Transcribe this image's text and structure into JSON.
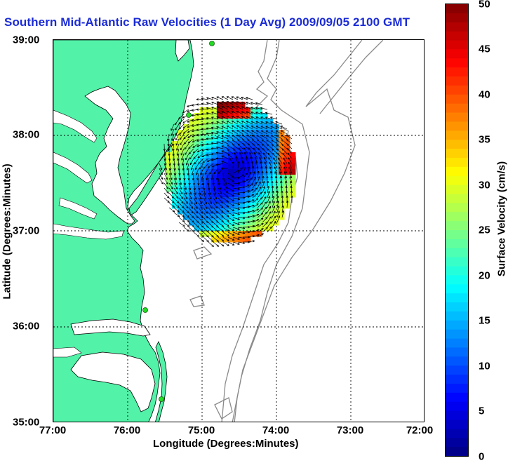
{
  "title": "Southern Mid-Atlantic Raw Velocities (1 Day Avg) 2009/09/05 2100 GMT",
  "map": {
    "type": "map",
    "xlabel": "Longitude (Degrees:Minutes)",
    "ylabel": "Latitude (Degrees:Minutes)",
    "xticks": [
      "77:00",
      "76:00",
      "75:00",
      "74:00",
      "73:00",
      "72:00"
    ],
    "yticks": [
      "39:00",
      "38:00",
      "37:00",
      "36:00",
      "35:00"
    ],
    "grid": true
  },
  "colorbar": {
    "label": "Surface Velocity (cm/s)",
    "ticks": [
      "50",
      "45",
      "40",
      "35",
      "30",
      "25",
      "20",
      "15",
      "10",
      "5",
      "0"
    ],
    "range": [
      0,
      50
    ]
  },
  "colors": {
    "land": "#52f2a8",
    "title": "#1a2bd6",
    "station": "#22dd22"
  }
}
